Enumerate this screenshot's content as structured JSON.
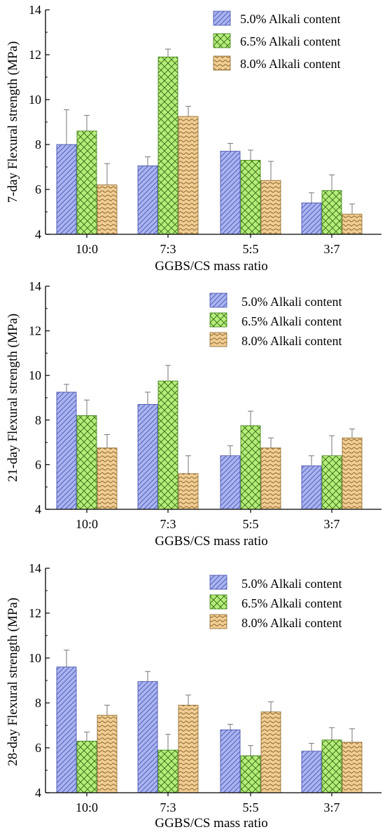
{
  "colors": {
    "series": [
      "#a9b4f0",
      "#b6ec7a",
      "#f0cd92"
    ],
    "series_stroke": [
      "#3b46a6",
      "#3a7d12",
      "#8a6428"
    ],
    "pattern_ink": [
      "#4a56b8",
      "#2f6a10",
      "#7a5520"
    ],
    "error_bar": "#777777",
    "axis": "#000000"
  },
  "chart_data": [
    {
      "type": "bar",
      "categories": [
        "10:0",
        "7:3",
        "5:5",
        "3:7"
      ],
      "xlabel": "GGBS/CS mass ratio",
      "ylabel": "7-day Flexural strength (MPa)",
      "ylim": [
        4,
        14
      ],
      "yticks": [
        "4",
        "6",
        "8",
        "10",
        "12",
        "14"
      ],
      "legend_position": "top-right",
      "series": [
        {
          "name": "5.0% Alkali content",
          "values": [
            8.0,
            7.05,
            7.7,
            5.4
          ],
          "errors": [
            1.55,
            0.4,
            0.35,
            0.45
          ]
        },
        {
          "name": "6.5% Alkali content",
          "values": [
            8.6,
            11.9,
            7.3,
            5.95
          ],
          "errors": [
            0.7,
            0.35,
            0.45,
            0.7
          ]
        },
        {
          "name": "8.0% Alkali content",
          "values": [
            6.2,
            9.25,
            6.4,
            4.9
          ],
          "errors": [
            0.95,
            0.45,
            0.85,
            0.45
          ]
        }
      ]
    },
    {
      "type": "bar",
      "categories": [
        "10:0",
        "7:3",
        "5:5",
        "3:7"
      ],
      "xlabel": "GGBS/CS mass ratio",
      "ylabel": "21-day Flexural strength (MPa)",
      "ylim": [
        4,
        14
      ],
      "yticks": [
        "4",
        "6",
        "8",
        "10",
        "12",
        "14"
      ],
      "legend_position": "top-right",
      "series": [
        {
          "name": "5.0% Alkali content",
          "values": [
            9.25,
            8.7,
            6.4,
            5.95
          ],
          "errors": [
            0.35,
            0.55,
            0.45,
            0.45
          ]
        },
        {
          "name": "6.5% Alkali content",
          "values": [
            8.2,
            9.75,
            7.75,
            6.4
          ],
          "errors": [
            0.7,
            0.7,
            0.65,
            0.9
          ]
        },
        {
          "name": "8.0% Alkali content",
          "values": [
            6.75,
            5.6,
            6.75,
            7.2
          ],
          "errors": [
            0.6,
            0.8,
            0.45,
            0.4
          ]
        }
      ]
    },
    {
      "type": "bar",
      "categories": [
        "10:0",
        "7:3",
        "5:5",
        "3:7"
      ],
      "xlabel": "GGBS/CS mass ratio",
      "ylabel": "28-day Flexural strength (MPa)",
      "ylim": [
        4,
        14
      ],
      "yticks": [
        "4",
        "6",
        "8",
        "10",
        "12",
        "14"
      ],
      "legend_position": "top-right",
      "series": [
        {
          "name": "5.0% Alkali content",
          "values": [
            9.6,
            8.95,
            6.8,
            5.85
          ],
          "errors": [
            0.75,
            0.45,
            0.25,
            0.35
          ]
        },
        {
          "name": "6.5% Alkali content",
          "values": [
            6.3,
            5.9,
            5.65,
            6.35
          ],
          "errors": [
            0.4,
            0.7,
            0.45,
            0.55
          ]
        },
        {
          "name": "8.0% Alkali content",
          "values": [
            7.45,
            7.9,
            7.6,
            6.25
          ],
          "errors": [
            0.45,
            0.45,
            0.45,
            0.6
          ]
        }
      ]
    }
  ]
}
